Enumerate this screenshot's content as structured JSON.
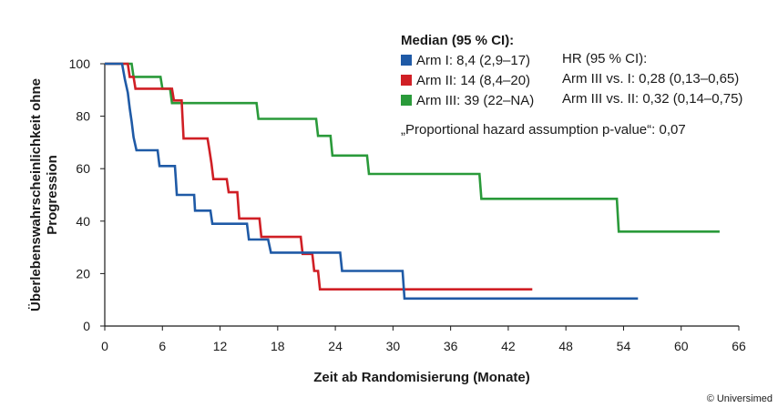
{
  "chart_data": {
    "type": "line",
    "step": true,
    "xlabel": "Zeit ab Randomisierung (Monate)",
    "ylabel_line1": "Überlebenswahrscheinlichkeit ohne",
    "ylabel_line2": "Progression",
    "xlim": [
      0,
      66
    ],
    "ylim": [
      0,
      100
    ],
    "x_ticks": [
      0,
      6,
      12,
      18,
      24,
      30,
      36,
      42,
      48,
      54,
      60,
      66
    ],
    "y_ticks": [
      0,
      20,
      40,
      60,
      80,
      100
    ],
    "grid": false,
    "series": [
      {
        "name": "Arm I: 8,4 (2,9–17)",
        "color": "#1f5aa6",
        "points": [
          [
            0,
            100
          ],
          [
            1.8,
            100
          ],
          [
            2.1,
            94
          ],
          [
            2.4,
            89
          ],
          [
            2.6,
            83
          ],
          [
            2.8,
            78
          ],
          [
            3.0,
            72
          ],
          [
            3.3,
            67
          ],
          [
            5.5,
            67
          ],
          [
            5.7,
            61
          ],
          [
            7.3,
            61
          ],
          [
            7.4,
            56
          ],
          [
            7.5,
            50
          ],
          [
            9.3,
            50
          ],
          [
            9.4,
            44
          ],
          [
            11,
            44
          ],
          [
            11.2,
            39
          ],
          [
            14.8,
            39
          ],
          [
            15,
            33
          ],
          [
            17,
            33
          ],
          [
            17.3,
            28
          ],
          [
            24.5,
            28
          ],
          [
            24.7,
            21
          ],
          [
            31,
            21
          ],
          [
            31.2,
            10.5
          ],
          [
            55.5,
            10.5
          ]
        ]
      },
      {
        "name": "Arm II: 14 (8,4–20)",
        "color": "#d01f25",
        "points": [
          [
            0,
            100
          ],
          [
            2.4,
            100
          ],
          [
            2.6,
            95
          ],
          [
            3.0,
            95
          ],
          [
            3.2,
            90.5
          ],
          [
            7.0,
            90.5
          ],
          [
            7.2,
            86
          ],
          [
            8.0,
            86
          ],
          [
            8.2,
            71.5
          ],
          [
            10.7,
            71.5
          ],
          [
            10.9,
            67
          ],
          [
            11.1,
            62
          ],
          [
            11.3,
            56
          ],
          [
            12.7,
            56
          ],
          [
            12.9,
            51
          ],
          [
            13.8,
            51
          ],
          [
            14,
            41
          ],
          [
            16.1,
            41
          ],
          [
            16.3,
            34
          ],
          [
            20.4,
            34
          ],
          [
            20.6,
            27.5
          ],
          [
            21.6,
            27.5
          ],
          [
            21.8,
            21
          ],
          [
            22.2,
            21
          ],
          [
            22.4,
            14
          ],
          [
            44.5,
            14
          ]
        ]
      },
      {
        "name": "Arm III: 39 (22–NA)",
        "color": "#2a9a3a",
        "points": [
          [
            0,
            100
          ],
          [
            2.8,
            100
          ],
          [
            3.0,
            95
          ],
          [
            5.8,
            95
          ],
          [
            6.0,
            90.5
          ],
          [
            6.8,
            90.5
          ],
          [
            7.0,
            85
          ],
          [
            15.8,
            85
          ],
          [
            16,
            79
          ],
          [
            22,
            79
          ],
          [
            22.2,
            72.5
          ],
          [
            23.5,
            72.5
          ],
          [
            23.7,
            65
          ],
          [
            27.3,
            65
          ],
          [
            27.5,
            58
          ],
          [
            39,
            58
          ],
          [
            39.2,
            48.5
          ],
          [
            53.3,
            48.5
          ],
          [
            53.5,
            36
          ],
          [
            64,
            36
          ]
        ]
      }
    ],
    "legend": {
      "title": "Median (95 % CI):",
      "hr_title": "HR (95 % CI):",
      "hr_rows": [
        "Arm III vs. I: 0,28 (0,13–0,65)",
        "Arm III vs. II: 0,32 (0,14–0,75)"
      ],
      "note": "„Proportional hazard assumption p-value“: 0,07"
    },
    "credit": "© Universimed"
  }
}
